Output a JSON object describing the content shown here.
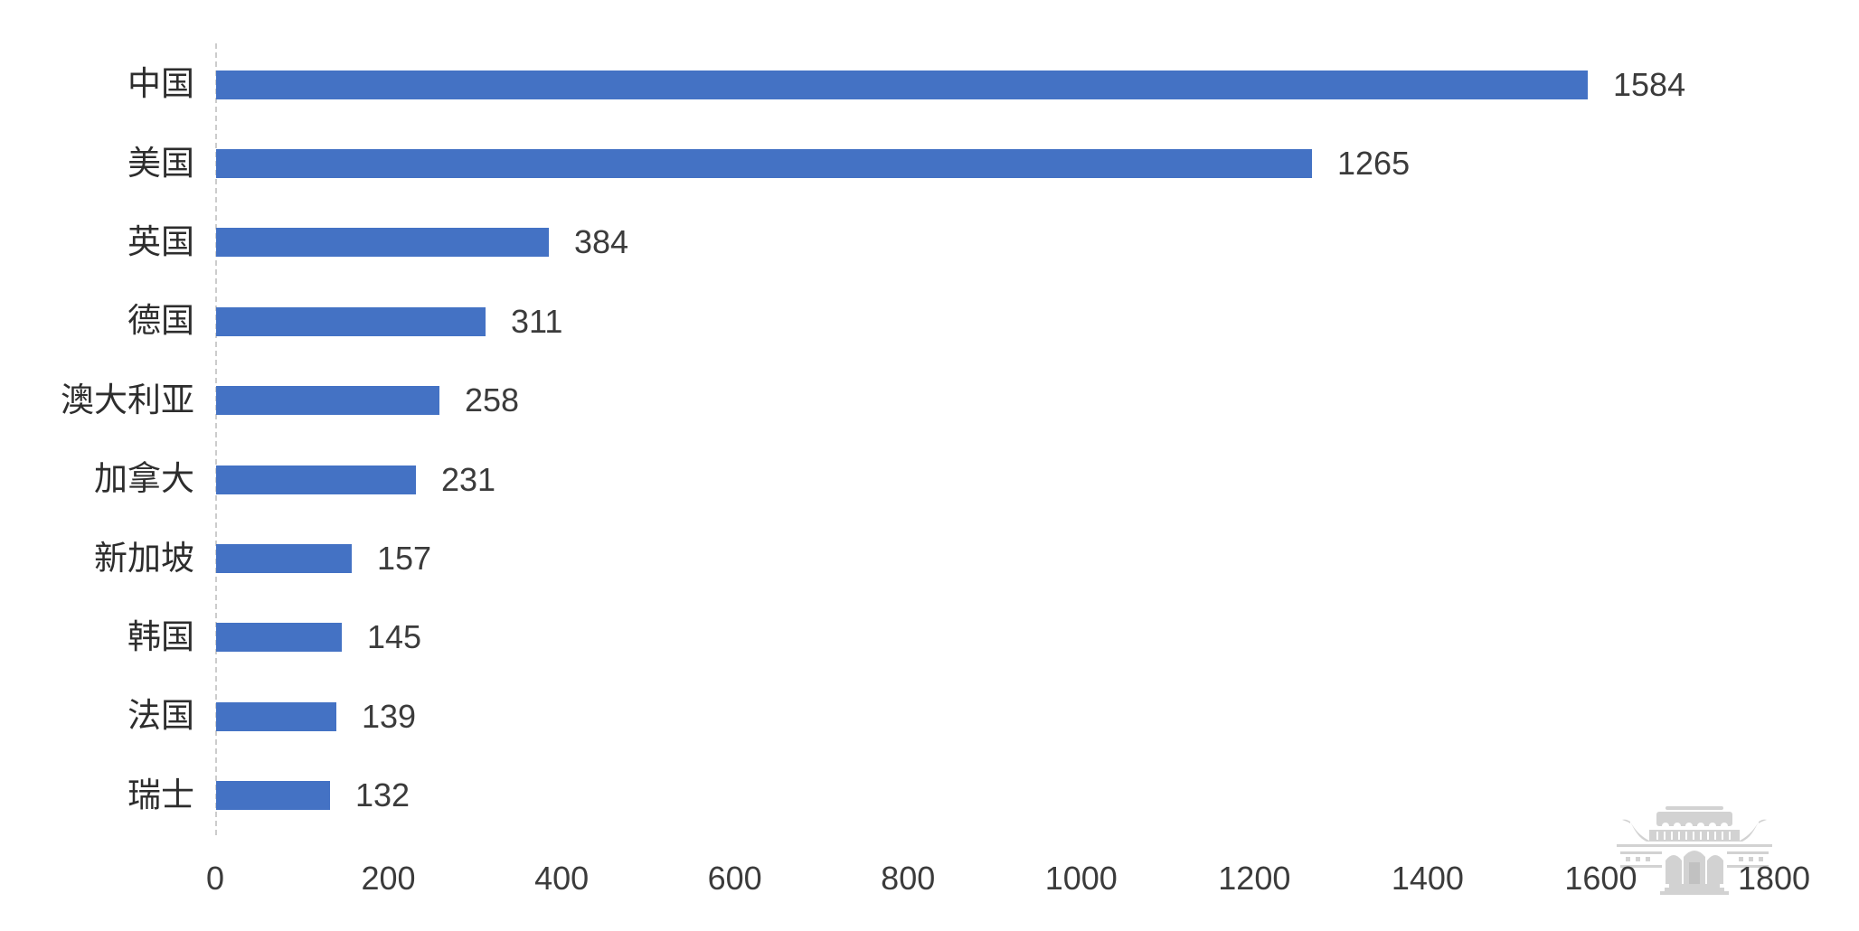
{
  "chart_data": {
    "type": "bar",
    "orientation": "horizontal",
    "title": "",
    "xlabel": "",
    "ylabel": "",
    "categories": [
      "中国",
      "美国",
      "英国",
      "德国",
      "澳大利亚",
      "加拿大",
      "新加坡",
      "韩国",
      "法国",
      "瑞士"
    ],
    "values": [
      1584,
      1265,
      384,
      311,
      258,
      231,
      157,
      145,
      139,
      132
    ],
    "data_labels": [
      "1584",
      "1265",
      "384",
      "311",
      "258",
      "231",
      "157",
      "145",
      "139",
      "132"
    ],
    "xlim": [
      0,
      1800
    ],
    "x_ticks": [
      "0",
      "200",
      "400",
      "600",
      "800",
      "1000",
      "1200",
      "1400",
      "1600",
      "1800"
    ],
    "grid": false,
    "legend": "none",
    "colors": {
      "bar": "#4472C4",
      "category_label": "#2d2d2d",
      "value_label": "#3b3b3b",
      "tick_label": "#3b3b3b",
      "axis_line": "#cccccc",
      "background": "#ffffff",
      "watermark": "#aeaeae"
    }
  },
  "watermark": {
    "icon": "chinese-pavilion-building-logo"
  }
}
